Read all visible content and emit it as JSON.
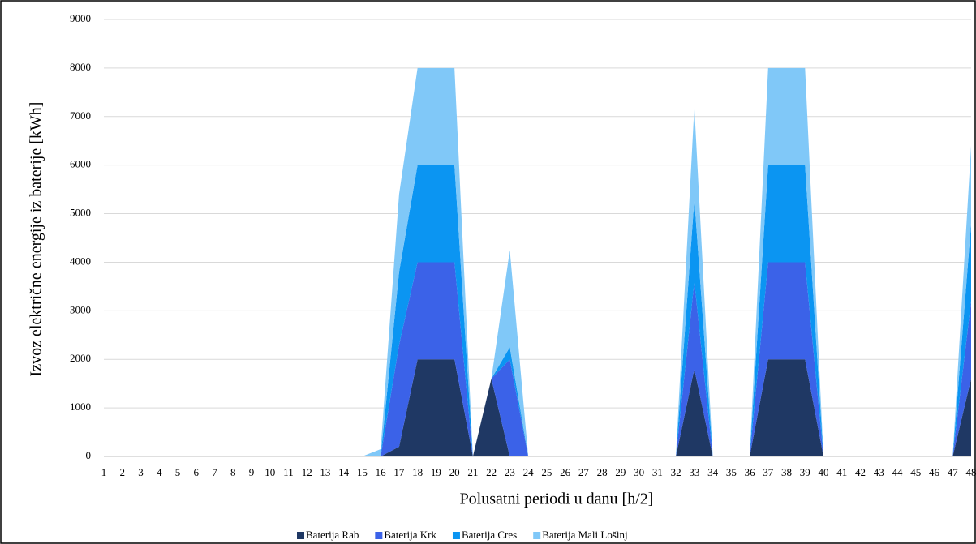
{
  "chart_data": {
    "type": "stacked_area",
    "y_label": "Izvoz električne energije iz baterije  [kWh]",
    "x_label": "Polusatni periodi u danu [h/2]",
    "categories": [
      "1",
      "2",
      "3",
      "4",
      "5",
      "6",
      "7",
      "8",
      "9",
      "10",
      "11",
      "12",
      "13",
      "14",
      "15",
      "16",
      "17",
      "18",
      "19",
      "20",
      "21",
      "22",
      "23",
      "24",
      "25",
      "26",
      "27",
      "28",
      "29",
      "30",
      "31",
      "32",
      "33",
      "34",
      "35",
      "36",
      "37",
      "38",
      "39",
      "40",
      "41",
      "42",
      "43",
      "44",
      "45",
      "46",
      "47",
      "48"
    ],
    "series": [
      {
        "name": "Baterija Rab",
        "color": "#1f3864",
        "values": [
          0,
          0,
          0,
          0,
          0,
          0,
          0,
          0,
          0,
          0,
          0,
          0,
          0,
          0,
          0,
          0,
          200,
          2000,
          2000,
          2000,
          0,
          1600,
          0,
          0,
          0,
          0,
          0,
          0,
          0,
          0,
          0,
          0,
          1800,
          0,
          0,
          0,
          2000,
          2000,
          2000,
          0,
          0,
          0,
          0,
          0,
          0,
          0,
          0,
          1600
        ]
      },
      {
        "name": "Baterija Krk",
        "color": "#3b62e8",
        "values": [
          0,
          0,
          0,
          0,
          0,
          0,
          0,
          0,
          0,
          0,
          0,
          0,
          0,
          0,
          0,
          0,
          2100,
          2000,
          2000,
          2000,
          0,
          0,
          2000,
          0,
          0,
          0,
          0,
          0,
          0,
          0,
          0,
          0,
          1800,
          0,
          0,
          0,
          2000,
          2000,
          2000,
          0,
          0,
          0,
          0,
          0,
          0,
          0,
          0,
          1600
        ]
      },
      {
        "name": "Baterija Cres",
        "color": "#0b95f2",
        "values": [
          0,
          0,
          0,
          0,
          0,
          0,
          0,
          0,
          0,
          0,
          0,
          0,
          0,
          0,
          0,
          0,
          1500,
          2000,
          2000,
          2000,
          0,
          0,
          250,
          0,
          0,
          0,
          0,
          0,
          0,
          0,
          0,
          0,
          1700,
          0,
          0,
          0,
          2000,
          2000,
          2000,
          0,
          0,
          0,
          0,
          0,
          0,
          0,
          0,
          1600
        ]
      },
      {
        "name": "Baterija Mali Lošinj",
        "color": "#80c8f8",
        "values": [
          0,
          0,
          0,
          0,
          0,
          0,
          0,
          0,
          0,
          0,
          0,
          0,
          0,
          0,
          0,
          150,
          1600,
          2000,
          2000,
          2000,
          0,
          0,
          2000,
          0,
          0,
          0,
          0,
          0,
          0,
          0,
          0,
          0,
          1900,
          0,
          0,
          0,
          2000,
          2000,
          2000,
          0,
          0,
          0,
          0,
          0,
          0,
          0,
          0,
          1600
        ]
      }
    ],
    "ylim": [
      0,
      9000
    ],
    "yticks": [
      0,
      1000,
      2000,
      3000,
      4000,
      5000,
      6000,
      7000,
      8000,
      9000
    ],
    "grid": true,
    "legend": "bottom"
  }
}
